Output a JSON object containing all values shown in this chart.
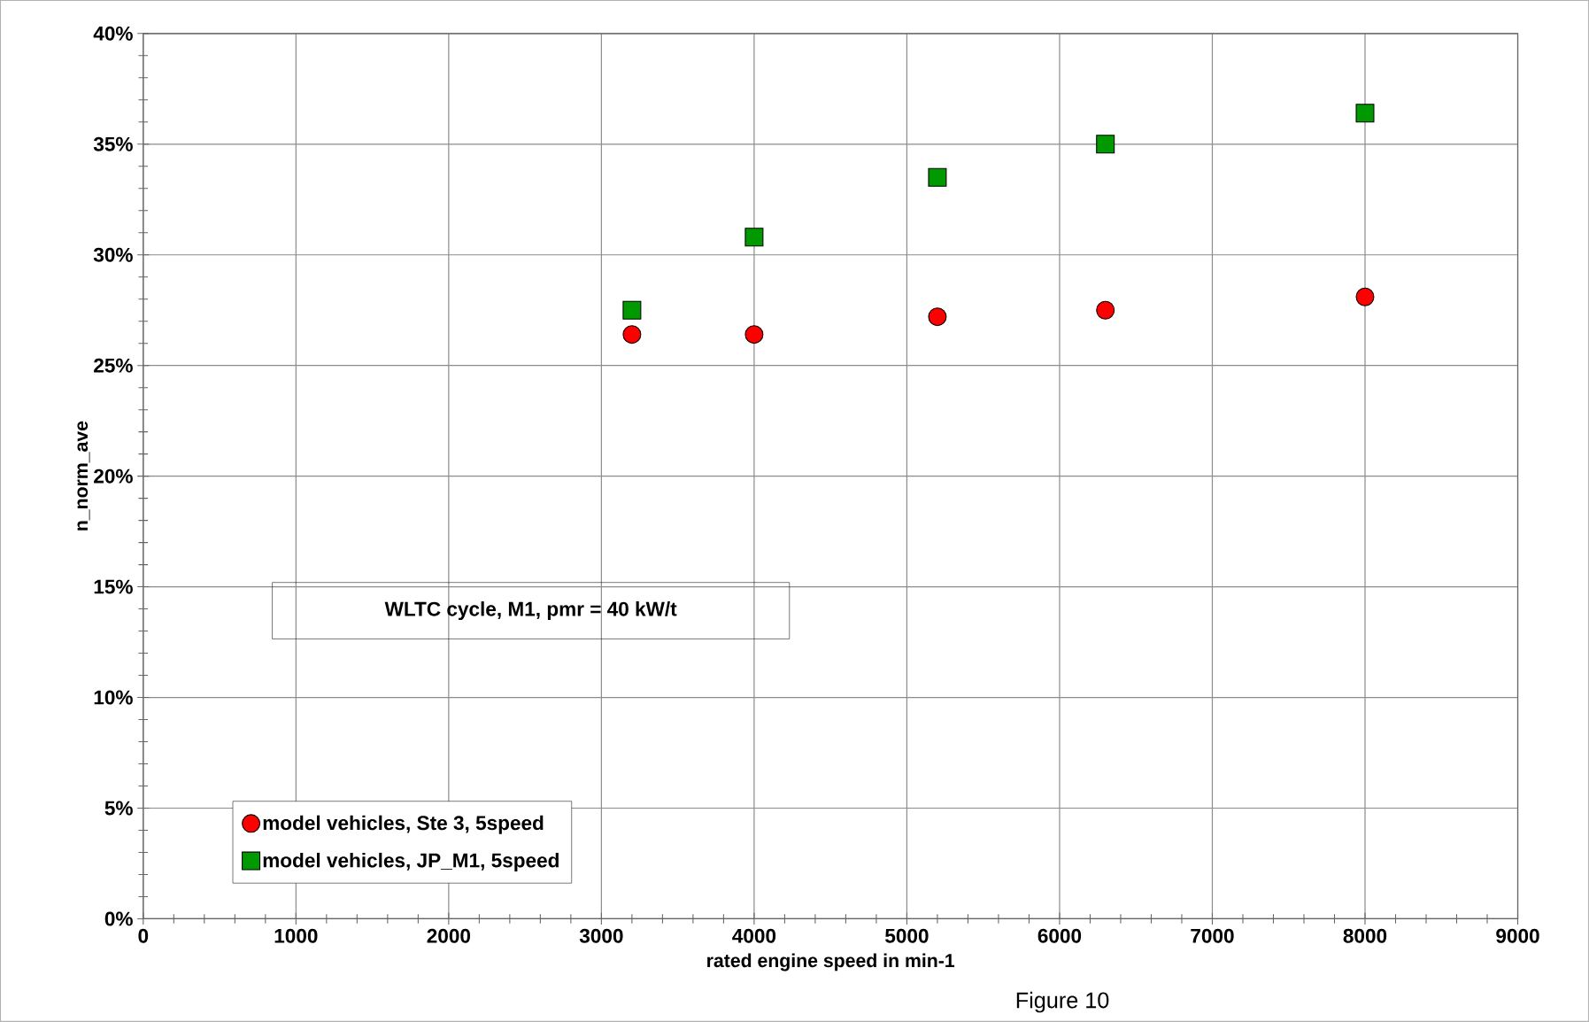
{
  "chart_data": {
    "type": "scatter",
    "xlabel": "rated engine speed in min-1",
    "ylabel": "n_norm_ave",
    "x": [
      3200,
      4000,
      5200,
      6300,
      8000
    ],
    "series": [
      {
        "name": "model vehicles, Ste 3, 5speed",
        "color": "#ff0000",
        "marker": "circle",
        "values": [
          26.4,
          26.4,
          27.2,
          27.5,
          28.1
        ]
      },
      {
        "name": "model vehicles, JP_M1, 5speed",
        "color": "#009900",
        "marker": "square",
        "values": [
          27.5,
          30.8,
          33.5,
          35.0,
          36.4
        ]
      }
    ],
    "xlim": [
      0,
      9000
    ],
    "xticks": [
      0,
      1000,
      2000,
      3000,
      4000,
      5000,
      6000,
      7000,
      8000,
      9000
    ],
    "ylim": [
      0,
      40
    ],
    "yticks": [
      {
        "value": 0,
        "label": "0%"
      },
      {
        "value": 5,
        "label": "5%"
      },
      {
        "value": 10,
        "label": "10%"
      },
      {
        "value": 15,
        "label": "15%"
      },
      {
        "value": 20,
        "label": "20%"
      },
      {
        "value": 25,
        "label": "25%"
      },
      {
        "value": 30,
        "label": "30%"
      },
      {
        "value": 35,
        "label": "35%"
      },
      {
        "value": 40,
        "label": "40%"
      }
    ],
    "annotations": [
      "WLTC cycle, M1, pmr = 40 kW/t",
      "Figure 10"
    ],
    "grid": true,
    "legend": "bottom left"
  }
}
